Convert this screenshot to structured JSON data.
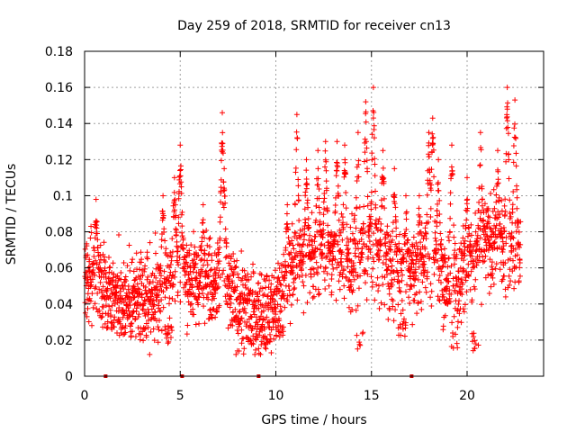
{
  "chart_data": {
    "type": "scatter",
    "title": "Day 259 of 2018, SRMTID for receiver cn13",
    "xlabel": "GPS time / hours",
    "ylabel": "SRMTID / TECUs",
    "xlim": [
      0,
      24
    ],
    "ylim": [
      0,
      0.18
    ],
    "xticks": [
      0,
      5,
      10,
      15,
      20
    ],
    "xtick_labels": [
      "0",
      "5",
      "10",
      "15",
      "20"
    ],
    "yticks": [
      0,
      0.02,
      0.04,
      0.06,
      0.08,
      0.1,
      0.12,
      0.14,
      0.16,
      0.18
    ],
    "ytick_labels": [
      "0",
      "0.02",
      "0.04",
      "0.06",
      "0.08",
      "0.1",
      "0.12",
      "0.14",
      "0.16",
      "0.18"
    ],
    "grid": true,
    "marker": "+",
    "color": "#ff0000",
    "baseline_marker_color": "#cc0000",
    "baseline_markers_x": [
      1.1,
      5.1,
      9.1,
      17.1
    ],
    "x_range_data": [
      0,
      22.8
    ],
    "series": [
      {
        "name": "SRMTID cn13",
        "baseline_mean_by_hour": [
          [
            0,
            0.055
          ],
          [
            1,
            0.05
          ],
          [
            2,
            0.042
          ],
          [
            3,
            0.042
          ],
          [
            4,
            0.045
          ],
          [
            5,
            0.06
          ],
          [
            6,
            0.05
          ],
          [
            7,
            0.055
          ],
          [
            8,
            0.04
          ],
          [
            9,
            0.035
          ],
          [
            10,
            0.038
          ],
          [
            11,
            0.06
          ],
          [
            12,
            0.065
          ],
          [
            13,
            0.065
          ],
          [
            14,
            0.06
          ],
          [
            15,
            0.07
          ],
          [
            16,
            0.055
          ],
          [
            17,
            0.055
          ],
          [
            18,
            0.065
          ],
          [
            19,
            0.05
          ],
          [
            20,
            0.06
          ],
          [
            21,
            0.075
          ],
          [
            22,
            0.07
          ],
          [
            22.8,
            0.065
          ]
        ],
        "peaks": [
          [
            0.6,
            0.098
          ],
          [
            4.1,
            0.1
          ],
          [
            4.7,
            0.11
          ],
          [
            5.0,
            0.128
          ],
          [
            6.2,
            0.095
          ],
          [
            7.2,
            0.146
          ],
          [
            7.3,
            0.115
          ],
          [
            10.6,
            0.095
          ],
          [
            11.1,
            0.145
          ],
          [
            11.6,
            0.12
          ],
          [
            12.2,
            0.125
          ],
          [
            12.6,
            0.13
          ],
          [
            13.2,
            0.13
          ],
          [
            13.6,
            0.128
          ],
          [
            14.3,
            0.135
          ],
          [
            14.7,
            0.152
          ],
          [
            15.1,
            0.16
          ],
          [
            15.6,
            0.125
          ],
          [
            16.2,
            0.115
          ],
          [
            16.8,
            0.1
          ],
          [
            17.5,
            0.1
          ],
          [
            18.0,
            0.135
          ],
          [
            18.2,
            0.143
          ],
          [
            18.5,
            0.12
          ],
          [
            19.2,
            0.128
          ],
          [
            20.0,
            0.11
          ],
          [
            20.7,
            0.135
          ],
          [
            21.6,
            0.125
          ],
          [
            22.1,
            0.16
          ],
          [
            22.5,
            0.153
          ]
        ],
        "minima": [
          [
            1.4,
            0.024
          ],
          [
            3.1,
            0.018
          ],
          [
            4.4,
            0.018
          ],
          [
            8.6,
            0.018
          ],
          [
            9.6,
            0.015
          ],
          [
            10.2,
            0.02
          ],
          [
            14.4,
            0.015
          ],
          [
            16.6,
            0.022
          ],
          [
            19.3,
            0.015
          ],
          [
            20.4,
            0.014
          ]
        ]
      }
    ]
  }
}
